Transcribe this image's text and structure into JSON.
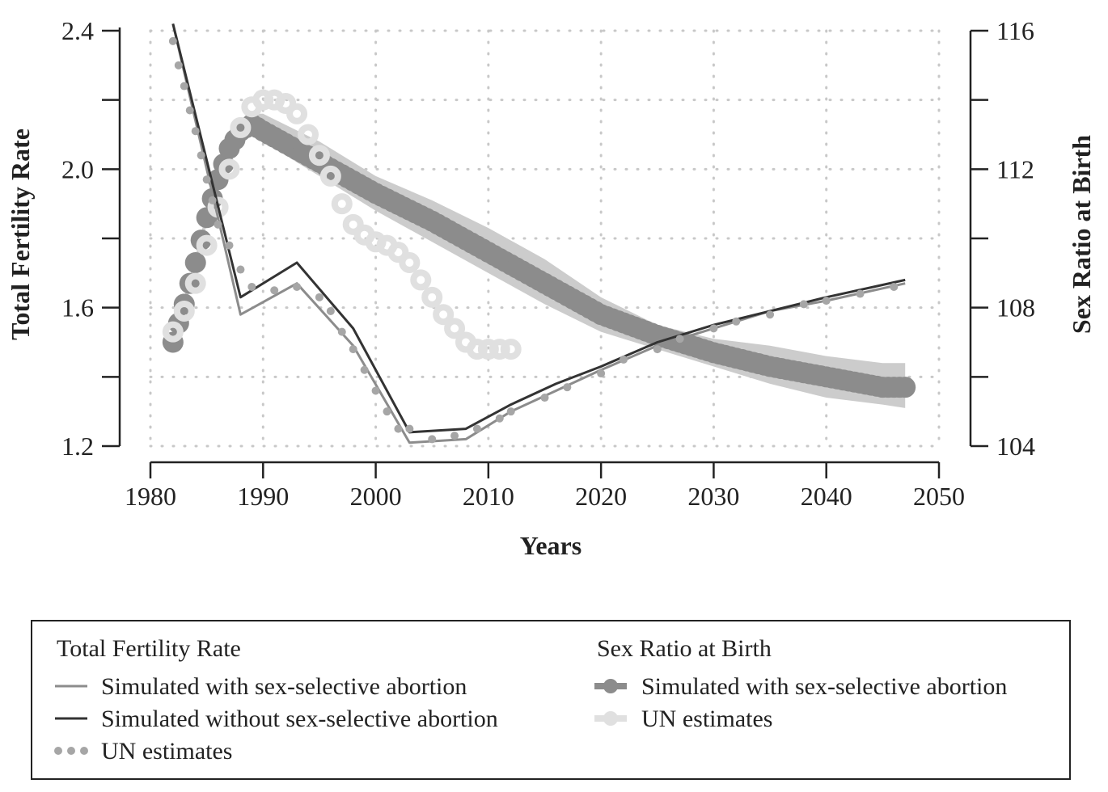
{
  "chart_data": {
    "type": "line",
    "xlabel": "Years",
    "ylabel_left": "Total Fertility Rate",
    "ylabel_right": "Sex Ratio at Birth",
    "xlim": [
      1980,
      2050
    ],
    "ylim_left": [
      1.2,
      2.4
    ],
    "ylim_right": [
      104,
      116
    ],
    "x_ticks": [
      "1980",
      "1990",
      "2000",
      "2010",
      "2020",
      "2030",
      "2040",
      "2050"
    ],
    "y_left_ticks": [
      "1.2",
      "1.6",
      "2.0",
      "2.4"
    ],
    "y_right_ticks": [
      "104",
      "108",
      "112",
      "116"
    ],
    "grid": "dotted",
    "legend_placement": "bottom",
    "legend": {
      "tfr_title": "Total Fertility Rate",
      "srb_title": "Sex Ratio at Birth",
      "tfr_with": "Simulated with sex-selective abortion",
      "tfr_without": "Simulated without sex-selective abortion",
      "tfr_un": "UN estimates",
      "srb_with": "Simulated with sex-selective abortion",
      "srb_un": "UN estimates"
    },
    "colors": {
      "tfr_with": "#8c8c8c",
      "tfr_without": "#333333",
      "tfr_un": "#a6a6a6",
      "srb_with": "#8c8c8c",
      "srb_band": "#cccccc",
      "srb_un": "#e0e0e0",
      "grid": "#c8c8c8"
    },
    "series": [
      {
        "name": "Simulated with sex-selective abortion",
        "axis": "left",
        "x": [
          1982,
          1988,
          1993,
          1998,
          2003,
          2008,
          2012,
          2016,
          2020,
          2025,
          2030,
          2035,
          2040,
          2047
        ],
        "values": [
          2.42,
          1.58,
          1.67,
          1.49,
          1.21,
          1.22,
          1.3,
          1.36,
          1.42,
          1.49,
          1.54,
          1.59,
          1.62,
          1.67
        ]
      },
      {
        "name": "Simulated without sex-selective abortion",
        "axis": "left",
        "x": [
          1982,
          1988,
          1993,
          1998,
          2003,
          2008,
          2012,
          2016,
          2020,
          2025,
          2030,
          2035,
          2040,
          2047
        ],
        "values": [
          2.42,
          1.63,
          1.73,
          1.54,
          1.24,
          1.25,
          1.32,
          1.38,
          1.43,
          1.5,
          1.55,
          1.59,
          1.63,
          1.68
        ]
      },
      {
        "name": "UN estimates",
        "axis": "left",
        "x": [
          1982,
          1982.5,
          1983,
          1983.5,
          1984,
          1984.5,
          1985,
          1985.5,
          1986,
          1987,
          1988,
          1989,
          1991,
          1993,
          1995,
          1996,
          1997,
          1998,
          1999,
          2000,
          2001,
          2002,
          2003,
          2005,
          2007,
          2009,
          2011,
          2012,
          2015,
          2017,
          2020,
          2022,
          2025,
          2027,
          2030,
          2032,
          2035,
          2038,
          2040,
          2043,
          2046
        ],
        "values": [
          2.37,
          2.3,
          2.24,
          2.17,
          2.11,
          2.04,
          1.97,
          1.91,
          1.84,
          1.78,
          1.71,
          1.66,
          1.65,
          1.66,
          1.63,
          1.59,
          1.53,
          1.48,
          1.42,
          1.36,
          1.3,
          1.25,
          1.25,
          1.22,
          1.23,
          1.25,
          1.28,
          1.3,
          1.34,
          1.37,
          1.41,
          1.45,
          1.48,
          1.51,
          1.54,
          1.56,
          1.58,
          1.61,
          1.62,
          1.64,
          1.66
        ]
      },
      {
        "name": "Simulated with sex-selective abortion",
        "axis": "right",
        "x": [
          1982,
          1983,
          1984,
          1985,
          1986,
          1987,
          1988,
          1989,
          1990,
          1995,
          2000,
          2005,
          2010,
          2015,
          2020,
          2025,
          2030,
          2035,
          2040,
          2045,
          2047
        ],
        "values": [
          107.0,
          108.1,
          109.3,
          110.6,
          111.7,
          112.6,
          113.1,
          113.3,
          113.1,
          112.2,
          111.3,
          110.5,
          109.6,
          108.7,
          107.8,
          107.2,
          106.7,
          106.3,
          106.0,
          105.7,
          105.7
        ],
        "band_upper": [
          107.2,
          108.3,
          109.5,
          110.8,
          111.9,
          112.8,
          113.4,
          113.6,
          113.6,
          112.8,
          111.8,
          111.1,
          110.3,
          109.4,
          108.3,
          107.5,
          107.1,
          106.9,
          106.6,
          106.4,
          106.4
        ],
        "band_lower": [
          106.8,
          107.9,
          109.1,
          110.4,
          111.5,
          112.4,
          112.8,
          113.0,
          112.8,
          111.8,
          110.8,
          109.9,
          109.0,
          108.1,
          107.3,
          106.8,
          106.3,
          105.8,
          105.4,
          105.2,
          105.1
        ]
      },
      {
        "name": "UN estimates",
        "axis": "right",
        "x": [
          1982,
          1983,
          1984,
          1985,
          1986,
          1987,
          1988,
          1989,
          1990,
          1991,
          1992,
          1993,
          1994,
          1995,
          1996,
          1997,
          1998,
          1999,
          2000,
          2001,
          2002,
          2003,
          2004,
          2005,
          2006,
          2007,
          2008,
          2009,
          2010,
          2011,
          2012
        ],
        "values": [
          107.3,
          107.9,
          108.7,
          109.8,
          110.9,
          112.0,
          113.2,
          113.8,
          114.0,
          114.0,
          113.9,
          113.6,
          113.0,
          112.4,
          111.8,
          111.0,
          110.4,
          110.1,
          109.9,
          109.8,
          109.6,
          109.3,
          108.8,
          108.3,
          107.8,
          107.4,
          107.0,
          106.8,
          106.8,
          106.8,
          106.8
        ]
      }
    ]
  }
}
